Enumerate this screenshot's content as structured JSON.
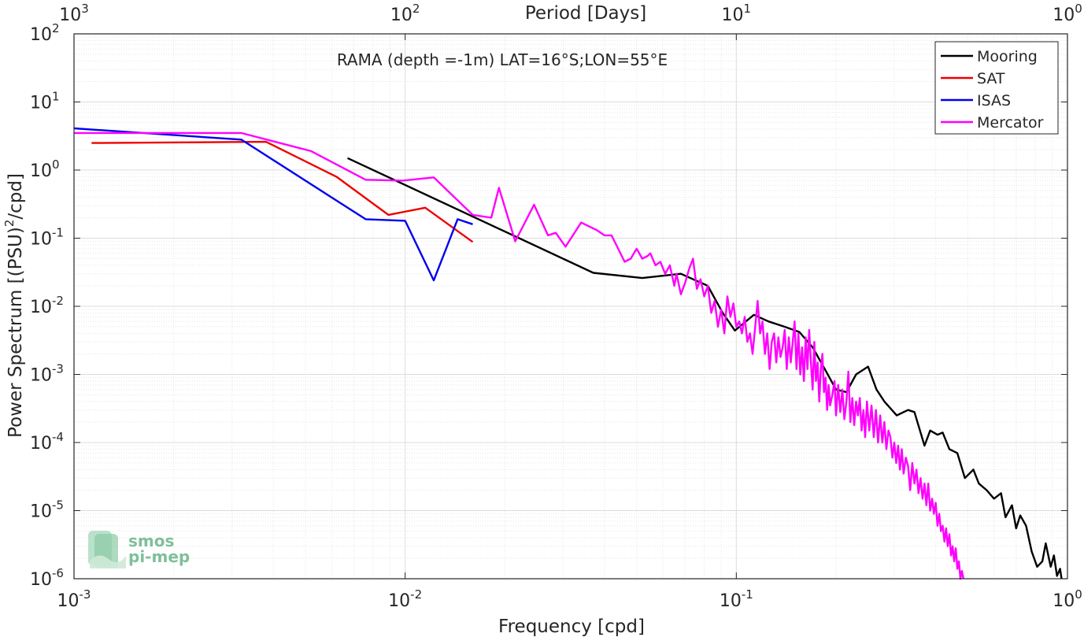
{
  "chart_data": {
    "type": "line",
    "title": "RAMA (depth =-1m) LAT=16°S;LON=55°E",
    "xlabel": "Frequency [cpd]",
    "ylabel_main": "Power Spectrum [(PSU)",
    "ylabel_sup": "2",
    "ylabel_tail": "/cpd]",
    "top_axis_label": "Period [Days]",
    "xscale": "log",
    "yscale": "log",
    "xlim": [
      0.001,
      1
    ],
    "ylim": [
      1e-06,
      100
    ],
    "grid": true,
    "legend_position": "top-right",
    "x_ticks": [
      {
        "value": 0.001,
        "base": "10",
        "exp": "-3"
      },
      {
        "value": 0.01,
        "base": "10",
        "exp": "-2"
      },
      {
        "value": 0.1,
        "base": "10",
        "exp": "-1"
      },
      {
        "value": 1,
        "base": "10",
        "exp": "0"
      }
    ],
    "top_ticks": [
      {
        "value": 0.001,
        "base": "10",
        "exp": "3"
      },
      {
        "value": 0.01,
        "base": "10",
        "exp": "2"
      },
      {
        "value": 0.1,
        "base": "10",
        "exp": "1"
      },
      {
        "value": 1,
        "base": "10",
        "exp": "0"
      }
    ],
    "y_ticks": [
      {
        "value": 100,
        "base": "10",
        "exp": "2"
      },
      {
        "value": 10,
        "base": "10",
        "exp": "1"
      },
      {
        "value": 1,
        "base": "10",
        "exp": "0"
      },
      {
        "value": 0.1,
        "base": "10",
        "exp": "-1"
      },
      {
        "value": 0.01,
        "base": "10",
        "exp": "-2"
      },
      {
        "value": 0.001,
        "base": "10",
        "exp": "-3"
      },
      {
        "value": 0.0001,
        "base": "10",
        "exp": "-4"
      },
      {
        "value": 1e-05,
        "base": "10",
        "exp": "-5"
      },
      {
        "value": 1e-06,
        "base": "10",
        "exp": "-6"
      }
    ],
    "series": [
      {
        "name": "Mooring",
        "color": "#000000",
        "points": [
          [
            0.0067,
            1.5
          ],
          [
            0.037,
            0.031
          ],
          [
            0.052,
            0.026
          ],
          [
            0.068,
            0.03
          ],
          [
            0.082,
            0.02
          ],
          [
            0.091,
            0.008
          ],
          [
            0.099,
            0.0044
          ],
          [
            0.113,
            0.0075
          ],
          [
            0.125,
            0.006
          ],
          [
            0.14,
            0.005
          ],
          [
            0.155,
            0.0042
          ],
          [
            0.17,
            0.0025
          ],
          [
            0.185,
            0.0012
          ],
          [
            0.2,
            0.0006
          ],
          [
            0.215,
            0.00055
          ],
          [
            0.23,
            0.001
          ],
          [
            0.25,
            0.0013
          ],
          [
            0.265,
            0.0006
          ],
          [
            0.28,
            0.0004
          ],
          [
            0.305,
            0.00025
          ],
          [
            0.33,
            0.0003
          ],
          [
            0.345,
            0.00028
          ],
          [
            0.37,
            9e-05
          ],
          [
            0.385,
            0.00015
          ],
          [
            0.405,
            0.00013
          ],
          [
            0.42,
            0.00014
          ],
          [
            0.44,
            8e-05
          ],
          [
            0.465,
            7e-05
          ],
          [
            0.49,
            3e-05
          ],
          [
            0.52,
            4e-05
          ],
          [
            0.54,
            2.5e-05
          ],
          [
            0.57,
            2e-05
          ],
          [
            0.6,
            1.5e-05
          ],
          [
            0.63,
            1.8e-05
          ],
          [
            0.65,
            8e-06
          ],
          [
            0.68,
            1.2e-05
          ],
          [
            0.7,
            5.5e-06
          ],
          [
            0.72,
            8.5e-06
          ],
          [
            0.75,
            6e-06
          ],
          [
            0.78,
            2.5e-06
          ],
          [
            0.81,
            1.5e-06
          ],
          [
            0.84,
            1.8e-06
          ],
          [
            0.86,
            3.3e-06
          ],
          [
            0.89,
            1.5e-06
          ],
          [
            0.91,
            2.2e-06
          ],
          [
            0.93,
            1.1e-06
          ],
          [
            0.95,
            1.4e-06
          ],
          [
            0.96,
            1e-06
          ]
        ]
      },
      {
        "name": "SAT",
        "color": "#ee0000",
        "points": [
          [
            0.00113,
            2.5
          ],
          [
            0.0038,
            2.6
          ],
          [
            0.0062,
            0.8
          ],
          [
            0.0089,
            0.22
          ],
          [
            0.0115,
            0.28
          ],
          [
            0.016,
            0.088
          ]
        ]
      },
      {
        "name": "ISAS",
        "color": "#0000ee",
        "points": [
          [
            0.001,
            4.1
          ],
          [
            0.0032,
            2.8
          ],
          [
            0.0076,
            0.19
          ],
          [
            0.01,
            0.18
          ],
          [
            0.0122,
            0.024
          ],
          [
            0.0144,
            0.19
          ],
          [
            0.016,
            0.16
          ]
        ]
      },
      {
        "name": "Mercator",
        "color": "#ff00ff",
        "points": [
          [
            0.001,
            3.5
          ],
          [
            0.0032,
            3.5
          ],
          [
            0.0052,
            1.9
          ],
          [
            0.0076,
            0.72
          ],
          [
            0.0098,
            0.7
          ],
          [
            0.0122,
            0.78
          ],
          [
            0.016,
            0.22
          ],
          [
            0.0182,
            0.2
          ],
          [
            0.0192,
            0.55
          ],
          [
            0.0215,
            0.09
          ],
          [
            0.0245,
            0.31
          ],
          [
            0.027,
            0.11
          ],
          [
            0.0285,
            0.12
          ],
          [
            0.0305,
            0.075
          ],
          [
            0.034,
            0.17
          ],
          [
            0.038,
            0.13
          ],
          [
            0.04,
            0.11
          ],
          [
            0.042,
            0.11
          ],
          [
            0.046,
            0.045
          ],
          [
            0.048,
            0.05
          ],
          [
            0.05,
            0.07
          ],
          [
            0.052,
            0.05
          ],
          [
            0.054,
            0.055
          ],
          [
            0.055,
            0.06
          ],
          [
            0.057,
            0.04
          ],
          [
            0.059,
            0.045
          ],
          [
            0.061,
            0.03
          ],
          [
            0.063,
            0.04
          ],
          [
            0.065,
            0.02
          ],
          [
            0.066,
            0.03
          ],
          [
            0.068,
            0.015
          ],
          [
            0.07,
            0.022
          ],
          [
            0.072,
            0.035
          ],
          [
            0.074,
            0.05
          ],
          [
            0.076,
            0.018
          ],
          [
            0.078,
            0.025
          ],
          [
            0.08,
            0.014
          ],
          [
            0.082,
            0.02
          ],
          [
            0.084,
            0.008
          ],
          [
            0.086,
            0.012
          ],
          [
            0.088,
            0.005
          ],
          [
            0.09,
            0.009
          ],
          [
            0.092,
            0.004
          ],
          [
            0.094,
            0.014
          ],
          [
            0.096,
            0.007
          ],
          [
            0.098,
            0.011
          ],
          [
            0.1,
            0.005
          ],
          [
            0.102,
            0.006
          ],
          [
            0.104,
            0.004
          ],
          [
            0.106,
            0.007
          ],
          [
            0.108,
            0.003
          ],
          [
            0.11,
            0.004
          ],
          [
            0.112,
            0.002
          ],
          [
            0.114,
            0.005
          ],
          [
            0.116,
            0.012
          ],
          [
            0.118,
            0.004
          ],
          [
            0.12,
            0.006
          ],
          [
            0.122,
            0.002
          ],
          [
            0.124,
            0.004
          ],
          [
            0.126,
            0.0012
          ],
          [
            0.128,
            0.003
          ],
          [
            0.13,
            0.004
          ],
          [
            0.132,
            0.0015
          ],
          [
            0.134,
            0.0035
          ],
          [
            0.136,
            0.0018
          ],
          [
            0.138,
            0.0025
          ],
          [
            0.14,
            0.0045
          ],
          [
            0.142,
            0.0012
          ],
          [
            0.144,
            0.0035
          ],
          [
            0.146,
            0.0015
          ],
          [
            0.148,
            0.003
          ],
          [
            0.15,
            0.006
          ],
          [
            0.152,
            0.0012
          ],
          [
            0.154,
            0.004
          ],
          [
            0.156,
            0.001
          ],
          [
            0.158,
            0.0025
          ],
          [
            0.16,
            0.0008
          ],
          [
            0.162,
            0.0035
          ],
          [
            0.164,
            0.0012
          ],
          [
            0.166,
            0.0045
          ],
          [
            0.168,
            0.0015
          ],
          [
            0.17,
            0.0006
          ],
          [
            0.172,
            0.003
          ],
          [
            0.174,
            0.0008
          ],
          [
            0.176,
            0.0015
          ],
          [
            0.178,
            0.0004
          ],
          [
            0.18,
            0.0012
          ],
          [
            0.182,
            0.002
          ],
          [
            0.184,
            0.00055
          ],
          [
            0.186,
            0.0009
          ],
          [
            0.188,
            0.0003
          ],
          [
            0.19,
            0.0007
          ],
          [
            0.192,
            0.00035
          ],
          [
            0.195,
            0.0005
          ],
          [
            0.198,
            0.0008
          ],
          [
            0.2,
            0.00025
          ],
          [
            0.203,
            0.0007
          ],
          [
            0.206,
            0.00028
          ],
          [
            0.209,
            0.0006
          ],
          [
            0.212,
            0.00022
          ],
          [
            0.215,
            0.0004
          ],
          [
            0.218,
            0.0011
          ],
          [
            0.221,
            0.0002
          ],
          [
            0.224,
            0.00045
          ],
          [
            0.227,
            0.00018
          ],
          [
            0.23,
            0.0004
          ],
          [
            0.233,
            0.00025
          ],
          [
            0.236,
            0.00045
          ],
          [
            0.239,
            0.00015
          ],
          [
            0.242,
            0.0003
          ],
          [
            0.245,
            0.00012
          ],
          [
            0.248,
            0.0004
          ],
          [
            0.252,
            0.00015
          ],
          [
            0.256,
            0.00035
          ],
          [
            0.26,
            0.00012
          ],
          [
            0.264,
            0.0003
          ],
          [
            0.268,
            0.0001
          ],
          [
            0.272,
            0.00025
          ],
          [
            0.276,
            0.0001
          ],
          [
            0.28,
            0.0002
          ],
          [
            0.284,
            8e-05
          ],
          [
            0.288,
            0.00015
          ],
          [
            0.292,
            0.00012
          ],
          [
            0.296,
            6e-05
          ],
          [
            0.3,
            0.0001
          ],
          [
            0.304,
            5e-05
          ],
          [
            0.308,
            9e-05
          ],
          [
            0.312,
            4e-05
          ],
          [
            0.316,
            8e-05
          ],
          [
            0.32,
            3.5e-05
          ],
          [
            0.325,
            6e-05
          ],
          [
            0.33,
            4.5e-05
          ],
          [
            0.335,
            2e-05
          ],
          [
            0.34,
            5e-05
          ],
          [
            0.345,
            2.5e-05
          ],
          [
            0.35,
            4e-05
          ],
          [
            0.355,
            1.8e-05
          ],
          [
            0.36,
            3e-05
          ],
          [
            0.365,
            1.5e-05
          ],
          [
            0.37,
            2.5e-05
          ],
          [
            0.375,
            1.2e-05
          ],
          [
            0.38,
            2.5e-05
          ],
          [
            0.385,
            1e-05
          ],
          [
            0.39,
            1.5e-05
          ],
          [
            0.395,
            9e-06
          ],
          [
            0.4,
            1.3e-05
          ],
          [
            0.405,
            6e-06
          ],
          [
            0.41,
            9e-06
          ],
          [
            0.415,
            5e-06
          ],
          [
            0.42,
            6e-06
          ],
          [
            0.425,
            3.5e-06
          ],
          [
            0.43,
            5.5e-06
          ],
          [
            0.435,
            3e-06
          ],
          [
            0.44,
            4.5e-06
          ],
          [
            0.445,
            2.2e-06
          ],
          [
            0.45,
            3e-06
          ],
          [
            0.455,
            1.8e-06
          ],
          [
            0.46,
            2.8e-06
          ],
          [
            0.465,
            1.4e-06
          ],
          [
            0.47,
            1.8e-06
          ],
          [
            0.475,
            1e-06
          ],
          [
            0.48,
            1.3e-06
          ],
          [
            0.485,
            1e-06
          ]
        ]
      }
    ],
    "logo": {
      "line1": "smos",
      "line2": "pi-mep",
      "color": "#7fbf9a"
    }
  }
}
